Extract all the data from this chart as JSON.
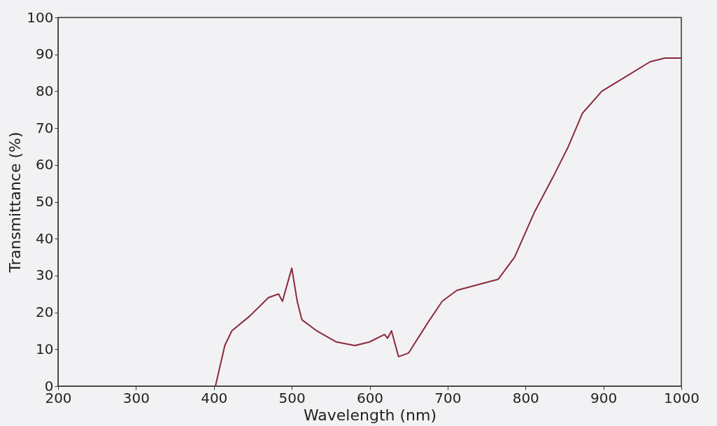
{
  "chart_data": {
    "type": "line",
    "xlabel": "Wavelength (nm)",
    "ylabel": "Transmittance (%)",
    "xlim": [
      200,
      1000
    ],
    "xticks": [
      200,
      300,
      400,
      500,
      600,
      700,
      800,
      900,
      1000
    ],
    "ylim": [
      0,
      100
    ],
    "yticks": [
      0,
      10,
      20,
      30,
      40,
      50,
      60,
      70,
      80,
      90,
      100
    ],
    "grid": false,
    "marker": "none",
    "line_style": "solid",
    "series": [
      {
        "color": "#8b2a3a",
        "x": [
          402,
          414,
          423,
          446,
          470,
          483,
          488,
          500,
          507,
          513,
          532,
          557,
          581,
          600,
          619,
          623,
          628,
          637,
          650,
          674,
          693,
          712,
          765,
          786,
          811,
          836,
          855,
          873,
          898,
          929,
          960,
          979,
          1000
        ],
        "values": [
          0,
          11,
          15,
          19,
          24,
          25,
          23,
          32,
          23,
          18,
          15,
          12,
          11,
          12,
          14,
          13,
          15,
          8,
          9,
          17,
          23,
          26,
          29,
          35,
          47,
          57,
          65,
          74,
          80,
          84,
          88,
          89,
          89
        ]
      }
    ]
  }
}
